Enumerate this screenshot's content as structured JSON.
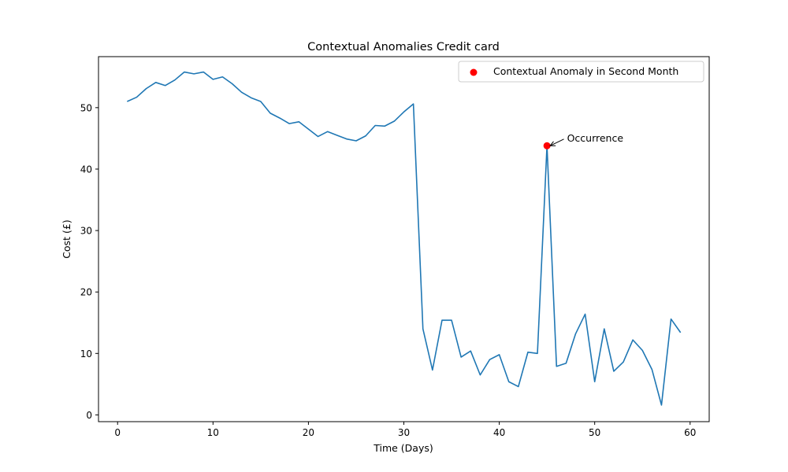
{
  "chart_data": {
    "type": "line",
    "title": "Contextual Anomalies Credit card",
    "xlabel": "Time (Days)",
    "ylabel": "Cost (£)",
    "xlim": [
      -2,
      62
    ],
    "ylim": [
      -1.1,
      58.3
    ],
    "xticks": [
      0,
      10,
      20,
      30,
      40,
      50,
      60
    ],
    "yticks": [
      0,
      10,
      20,
      30,
      40,
      50
    ],
    "grid": false,
    "legend_position": "upper-right",
    "series": [
      {
        "type": "line",
        "color": "#1f77b4",
        "x": [
          1,
          2,
          3,
          4,
          5,
          6,
          7,
          8,
          9,
          10,
          11,
          12,
          13,
          14,
          15,
          16,
          17,
          18,
          19,
          20,
          21,
          22,
          23,
          24,
          25,
          26,
          27,
          28,
          29,
          30,
          31,
          32,
          33,
          34,
          35,
          36,
          37,
          38,
          39,
          40,
          41,
          42,
          43,
          44,
          45,
          46,
          47,
          48,
          49,
          50,
          51,
          52,
          53,
          54,
          55,
          56,
          57,
          58,
          59
        ],
        "y": [
          51.0,
          51.7,
          53.1,
          54.1,
          53.6,
          54.5,
          55.8,
          55.5,
          55.8,
          54.6,
          55.0,
          53.9,
          52.5,
          51.6,
          51.0,
          49.1,
          48.3,
          47.4,
          47.7,
          46.5,
          45.3,
          46.1,
          45.5,
          44.9,
          44.6,
          45.4,
          47.1,
          47.0,
          47.8,
          49.3,
          50.6,
          14.0,
          7.3,
          15.4,
          15.4,
          9.4,
          10.4,
          6.5,
          9.0,
          9.8,
          5.4,
          4.6,
          10.2,
          10.0,
          43.8,
          7.9,
          8.4,
          13.2,
          16.4,
          5.4,
          14.0,
          7.1,
          8.6,
          12.2,
          10.5,
          7.4,
          1.6,
          15.6,
          13.4
        ]
      },
      {
        "name": "Contextual Anomaly in Second Month",
        "type": "scatter",
        "color": "#ff0000",
        "x": [
          45
        ],
        "y": [
          43.8
        ]
      }
    ],
    "annotations": [
      {
        "text": "Occurrence",
        "x": 45,
        "y": 43.8,
        "text_x": 47.1,
        "text_y": 44.5
      }
    ]
  }
}
